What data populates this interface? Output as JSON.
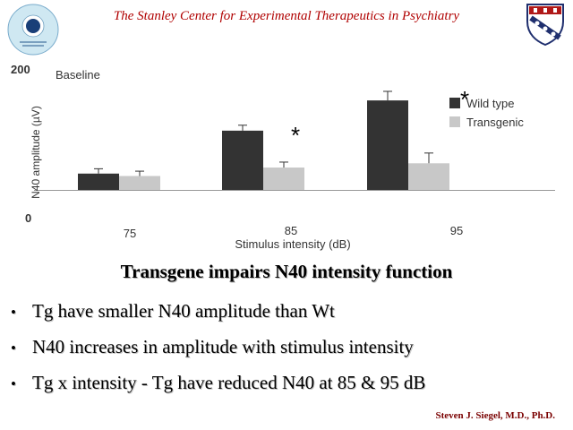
{
  "header": {
    "title": "The Stanley Center for Experimental Therapeutics in Psychiatry"
  },
  "logos": {
    "left": "stanley-center-logo",
    "right": "penn-shield-logo"
  },
  "chart_data": {
    "type": "bar",
    "panel_label": "Baseline",
    "categories": [
      "75",
      "85",
      "95"
    ],
    "series": [
      {
        "name": "Wild type",
        "values": [
          27,
          98,
          148
        ],
        "errors": [
          8,
          9,
          15
        ],
        "color": "#333333"
      },
      {
        "name": "Transgenic",
        "values": [
          23,
          37,
          44
        ],
        "errors": [
          8,
          9,
          17
        ],
        "color": "#c8c8c8"
      }
    ],
    "significance": [
      {
        "category": "85",
        "label": "*"
      },
      {
        "category": "95",
        "label": "*"
      }
    ],
    "xlabel": "Stimulus intensity (dB)",
    "ylabel": "N40 amplitude (µV)",
    "ylim": [
      0,
      200
    ],
    "yticks": [
      "200",
      "0"
    ],
    "legend_position": "right",
    "grid": false
  },
  "slide": {
    "heading": "Transgene impairs N40 intensity function",
    "bullets": [
      "Tg have smaller N40 amplitude than Wt",
      "N40 increases in amplitude with stimulus intensity",
      "Tg x intensity - Tg have reduced N40 at 85 & 95 dB"
    ]
  },
  "footer": {
    "author": "Steven J. Siegel, M.D., Ph.D."
  },
  "colors": {
    "title": "#b00000",
    "footer": "#7a0000"
  }
}
